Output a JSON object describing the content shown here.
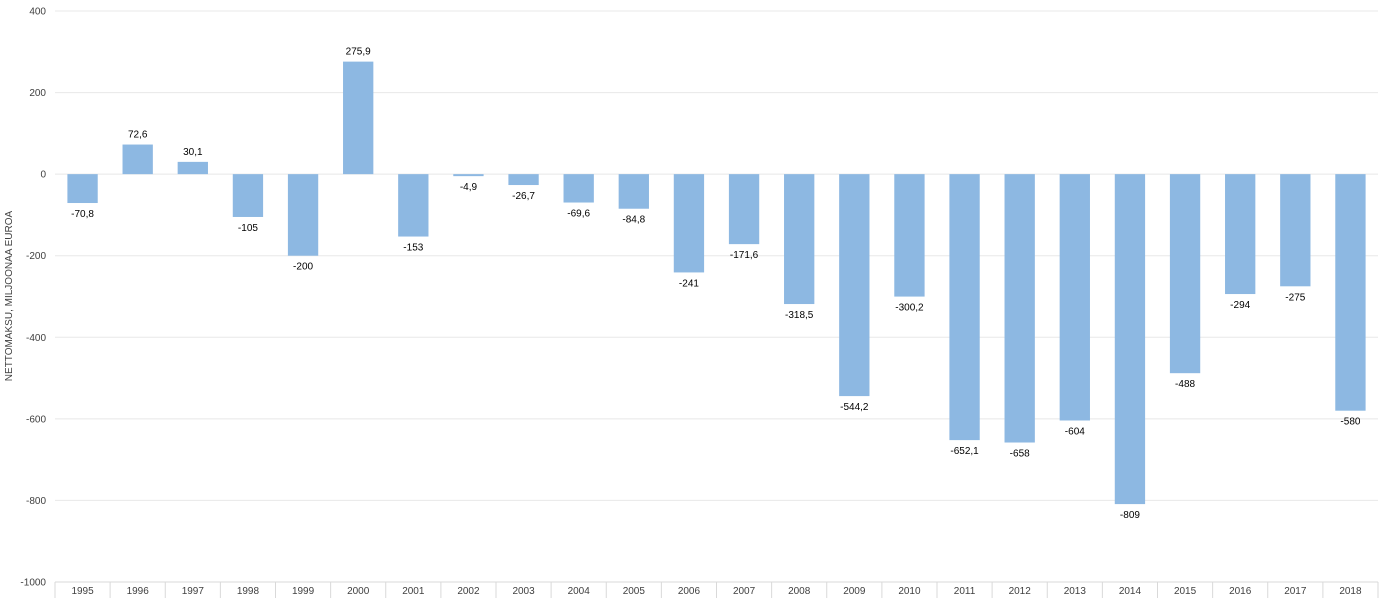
{
  "chart_data": {
    "type": "bar",
    "ylabel": "NETTOMAKSU, MILJOONAA EUROA",
    "ylim": [
      -1000,
      400
    ],
    "yticks": [
      400,
      200,
      0,
      -200,
      -400,
      -600,
      -800,
      -1000
    ],
    "categories": [
      "1995",
      "1996",
      "1997",
      "1998",
      "1999",
      "2000",
      "2001",
      "2002",
      "2003",
      "2004",
      "2005",
      "2006",
      "2007",
      "2008",
      "2009",
      "2010",
      "2011",
      "2012",
      "2013",
      "2014",
      "2015",
      "2016",
      "2017",
      "2018"
    ],
    "values": [
      -70.8,
      72.6,
      30.1,
      -105,
      -200,
      275.9,
      -153,
      -4.9,
      -26.7,
      -69.6,
      -84.8,
      -241,
      -171.6,
      -318.5,
      -544.2,
      -300.2,
      -652.1,
      -658,
      -604,
      -809,
      -488,
      -294,
      -275,
      -580
    ],
    "data_labels": [
      "-70,8",
      "72,6",
      "30,1",
      "-105",
      "-200",
      "275,9",
      "-153",
      "-4,9",
      "-26,7",
      "-69,6",
      "-84,8",
      "-241",
      "-171,6",
      "-318,5",
      "-544,2",
      "-300,2",
      "-652,1",
      "-658",
      "-604",
      "-809",
      "-488",
      "-294",
      "-275",
      "-580"
    ],
    "bar_color": "#8db8e2",
    "grid": true,
    "legend": "none"
  }
}
